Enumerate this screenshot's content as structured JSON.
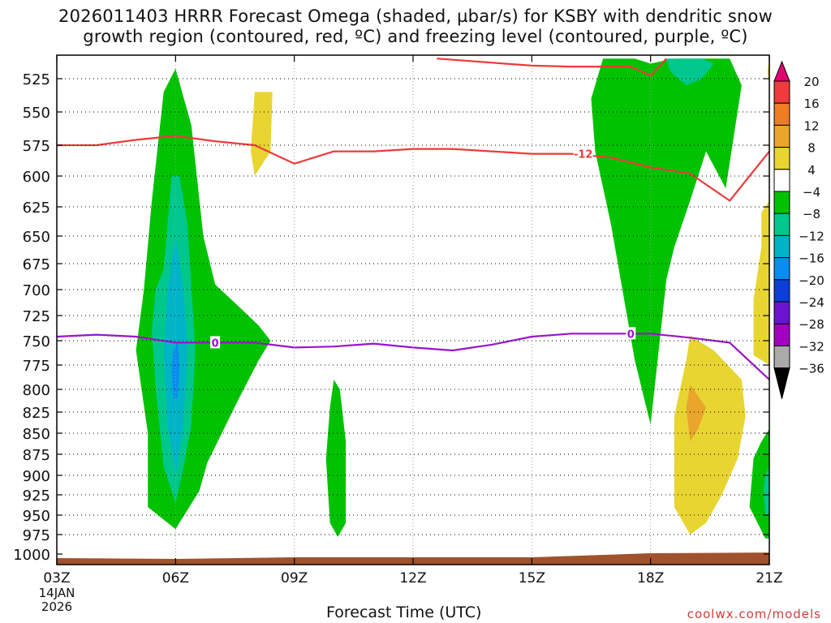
{
  "title_line1": "2026011403 HRRR Forecast Omega (shaded, µbar/s) for KSBY with dendritic snow",
  "title_line2": "growth region (contoured, red, ºC) and freezing level (contoured, purple, ºC)",
  "watermark": "coolwx.com/models",
  "chart_data": {
    "type": "time-height",
    "xlabel": "Forecast Time (UTC)",
    "x_ticks": [
      "03Z",
      "06Z",
      "09Z",
      "12Z",
      "15Z",
      "18Z",
      "21Z"
    ],
    "x_start_date": [
      "14JAN",
      "2026"
    ],
    "y_ticks": [
      525,
      550,
      575,
      600,
      625,
      650,
      675,
      700,
      725,
      750,
      775,
      800,
      825,
      850,
      875,
      900,
      925,
      950,
      975,
      1000
    ],
    "xlim": [
      3,
      21
    ],
    "ylim": [
      1000,
      505
    ],
    "colorbar": {
      "labels": [
        20,
        16,
        12,
        8,
        4,
        -4,
        -8,
        -12,
        -16,
        -20,
        -24,
        -28,
        -32,
        -36
      ],
      "colors": [
        "#e0006e",
        "#ef3b3b",
        "#ef7d24",
        "#eaa52c",
        "#e8d532",
        "#ffffff",
        "#00c200",
        "#00c88c",
        "#00b4c8",
        "#0a8cf0",
        "#0c3ed8",
        "#6a14d0",
        "#a000c0",
        "#aaaaaa",
        "#000000"
      ]
    },
    "dgz_contour_label": "-12",
    "dgz_line": {
      "x": [
        3,
        4,
        5,
        6,
        7,
        8,
        9,
        10,
        11,
        12,
        13,
        14,
        15,
        16,
        17,
        18,
        19,
        20,
        21
      ],
      "y": [
        575,
        575,
        571,
        568,
        572,
        575,
        590,
        580,
        580,
        578,
        578,
        580,
        582,
        582,
        585,
        593,
        598,
        620,
        580
      ]
    },
    "dgz_top_line": {
      "x": [
        12.6,
        15,
        16,
        17.5,
        18,
        18.4
      ],
      "y": [
        505,
        512,
        513,
        513,
        522,
        505
      ]
    },
    "freezing_contour_label": "0",
    "freezing_line": {
      "x": [
        3,
        4,
        5,
        6,
        7,
        8,
        9,
        10,
        11,
        12,
        13,
        14,
        15,
        16,
        17,
        18,
        19,
        20,
        21
      ],
      "y": [
        746,
        744,
        746,
        752,
        752,
        752,
        757,
        756,
        753,
        757,
        760,
        754,
        746,
        743,
        743,
        743,
        747,
        752,
        790
      ]
    },
    "omega_regions": [
      {
        "value": -4,
        "x": [
          5.7,
          6.0,
          6.4,
          6.7,
          7.0,
          7.7,
          8.1,
          8.4,
          8.1,
          7.6,
          6.8,
          6.6,
          6.0,
          5.3,
          5.3,
          5.0,
          5.2,
          5.4
        ],
        "y": [
          535,
          515,
          560,
          650,
          695,
          720,
          735,
          750,
          770,
          810,
          885,
          920,
          968,
          940,
          850,
          760,
          700,
          620
        ]
      },
      {
        "value": -8,
        "x": [
          5.7,
          5.9,
          6.1,
          6.3,
          6.5,
          6.4,
          6.2,
          6.0,
          5.7,
          5.5,
          5.4,
          5.5
        ],
        "y": [
          680,
          600,
          600,
          640,
          760,
          840,
          890,
          935,
          890,
          800,
          740,
          700
        ]
      },
      {
        "value": -12,
        "x": [
          5.8,
          6.0,
          6.2,
          6.3,
          6.2,
          6.0,
          5.8,
          5.7
        ],
        "y": [
          700,
          650,
          700,
          760,
          840,
          900,
          840,
          760
        ]
      },
      {
        "value": -16,
        "x": [
          5.95,
          6.05,
          6.1,
          6.05,
          5.95,
          5.9
        ],
        "y": [
          760,
          750,
          780,
          810,
          810,
          780
        ]
      },
      {
        "value": 4,
        "x": [
          8.0,
          8.45,
          8.4,
          8.2,
          8.0,
          7.9
        ],
        "y": [
          535,
          535,
          580,
          590,
          600,
          580
        ]
      },
      {
        "value": -4,
        "x": [
          10.0,
          10.15,
          10.3,
          10.3,
          10.1,
          9.9,
          9.8,
          9.9
        ],
        "y": [
          790,
          800,
          860,
          960,
          978,
          960,
          880,
          820
        ]
      },
      {
        "value": -4,
        "x": [
          17.4,
          17.6,
          18.0,
          18.6,
          19.2,
          19.7,
          20.0,
          20.3,
          19.9,
          19.4,
          19.0,
          18.6,
          18.4,
          18.0,
          17.6,
          17.0,
          16.6,
          16.5,
          16.8
        ],
        "y": [
          505,
          505,
          510,
          505,
          505,
          505,
          505,
          530,
          610,
          580,
          620,
          660,
          690,
          840,
          770,
          640,
          580,
          540,
          505
        ]
      },
      {
        "value": -8,
        "x": [
          18.4,
          18.8,
          19.3,
          19.6,
          19.3,
          18.9,
          18.5
        ],
        "y": [
          505,
          505,
          505,
          510,
          525,
          530,
          518
        ]
      },
      {
        "value": 4,
        "x": [
          19.0,
          19.6,
          20.3,
          20.4,
          20.2,
          19.8,
          19.4,
          19.0,
          18.6,
          18.6,
          18.9
        ],
        "y": [
          745,
          760,
          790,
          830,
          880,
          925,
          960,
          975,
          940,
          830,
          770
        ]
      },
      {
        "value": 8,
        "x": [
          19.0,
          19.4,
          19.2,
          19.0,
          18.9
        ],
        "y": [
          795,
          820,
          845,
          860,
          820
        ]
      },
      {
        "value": 4,
        "x": [
          20.8,
          21.0,
          21.0,
          20.6,
          20.6,
          20.8
        ],
        "y": [
          630,
          620,
          775,
          765,
          710,
          660
        ]
      },
      {
        "value": -4,
        "x": [
          21.0,
          21.0,
          20.9,
          20.5,
          20.6,
          20.8
        ],
        "y": [
          845,
          980,
          980,
          940,
          880,
          860
        ]
      },
      {
        "value": -8,
        "x": [
          21.0,
          21.0,
          20.9,
          20.85,
          20.9
        ],
        "y": [
          890,
          950,
          950,
          920,
          900
        ]
      },
      {
        "value": 4,
        "x": [
          21.0,
          21.0,
          20.95
        ],
        "y": [
          505,
          530,
          518
        ]
      }
    ],
    "terrain": {
      "x": [
        3,
        6,
        9,
        12,
        15,
        18,
        21
      ],
      "y": [
        1005,
        1006,
        1004,
        1004,
        1004,
        999,
        998
      ],
      "color": "#a0522d"
    }
  }
}
